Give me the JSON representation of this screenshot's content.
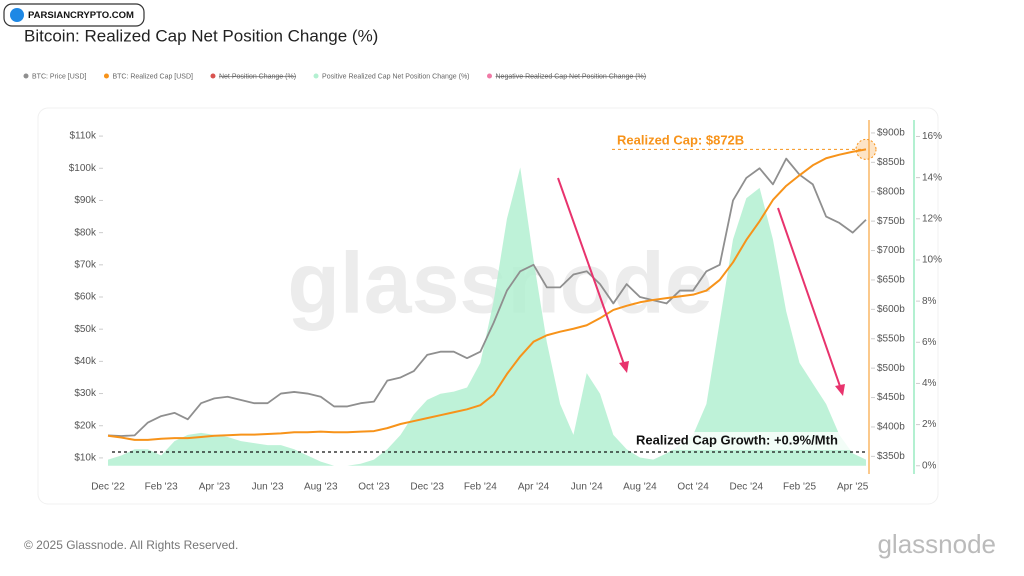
{
  "logo": "PARSIANCRYPTO.COM",
  "watermark": "glassnode",
  "footer_logo": "glassnode",
  "copyright": "© 2025 Glassnode. All Rights Reserved.",
  "chart_data": {
    "type": "line",
    "title": "Bitcoin: Realized Cap Net Position Change (%)",
    "categories": [
      "Dec '22",
      null,
      null,
      null,
      "Feb '23",
      null,
      null,
      null,
      "Apr '23",
      null,
      null,
      null,
      "Jun '23",
      null,
      null,
      null,
      "Aug '23",
      null,
      null,
      null,
      "Oct '23",
      null,
      null,
      null,
      "Dec '23",
      null,
      null,
      null,
      "Feb '24",
      null,
      null,
      null,
      "Apr '24",
      null,
      null,
      null,
      "Jun '24",
      null,
      null,
      null,
      "Aug '24",
      null,
      null,
      null,
      "Oct '24",
      null,
      null,
      null,
      "Dec '24",
      null,
      null,
      null,
      "Feb '25",
      null,
      null,
      null,
      "Apr '25",
      null
    ],
    "series": [
      {
        "name": "BTC: Price [USD]",
        "color": "#8f8f8f",
        "axis": "y",
        "values": [
          17000,
          16800,
          17000,
          21000,
          23000,
          24000,
          22000,
          27000,
          28500,
          29000,
          28000,
          27000,
          27000,
          30000,
          30500,
          30000,
          29000,
          26000,
          26000,
          27000,
          27500,
          34000,
          35000,
          37000,
          42000,
          43000,
          43000,
          41000,
          43000,
          52000,
          62000,
          68000,
          70000,
          63000,
          63000,
          67000,
          68000,
          64000,
          58000,
          64000,
          60000,
          59000,
          58000,
          62000,
          62000,
          68000,
          70000,
          90000,
          97000,
          100000,
          95000,
          103000,
          98000,
          95000,
          85000,
          83000,
          80000,
          84000
        ]
      },
      {
        "name": "BTC: Realized Cap [USD]",
        "color": "#f7931a",
        "axis": "y2",
        "values": [
          385,
          382,
          378,
          378,
          380,
          381,
          381,
          383,
          385,
          386,
          387,
          387,
          388,
          389,
          391,
          391,
          392,
          391,
          391,
          392,
          393,
          398,
          405,
          410,
          415,
          420,
          425,
          430,
          437,
          455,
          490,
          520,
          545,
          556,
          562,
          567,
          573,
          585,
          599,
          606,
          612,
          616,
          619,
          622,
          625,
          632,
          650,
          680,
          718,
          750,
          786,
          810,
          828,
          845,
          857,
          863,
          868,
          872
        ]
      },
      {
        "name": "Positive Realized Cap Net Position Change (%)",
        "color": "#b3f0d1",
        "axis": "y3",
        "area": true,
        "values": [
          0.3,
          0.5,
          0.8,
          0.8,
          0.5,
          1.2,
          1.5,
          1.6,
          1.5,
          1.4,
          1.2,
          1.1,
          1.0,
          1.0,
          0.8,
          0.5,
          0.2,
          0,
          0,
          0.1,
          0.3,
          0.8,
          1.5,
          2.5,
          3.2,
          3.5,
          3.6,
          3.8,
          5,
          8,
          12,
          14.5,
          10,
          6,
          3,
          1.5,
          4.5,
          3.5,
          1.5,
          0.8,
          0.4,
          0.3,
          0.6,
          1,
          1.5,
          3,
          7,
          11,
          13,
          13.5,
          11,
          7.5,
          5,
          4,
          3,
          1.5,
          0.6,
          0.3
        ]
      }
    ],
    "hidden_series": [
      {
        "name": "Net Position Change (%)",
        "color": "#d9534f"
      },
      {
        "name": "Negative Realized Cap Net Position Change (%)",
        "color": "#f07aa6"
      }
    ],
    "ylim": [
      5000,
      115000
    ],
    "yticks": [
      {
        "value": 10000,
        "label": "$10k"
      },
      {
        "value": 20000,
        "label": "$20k"
      },
      {
        "value": 30000,
        "label": "$30k"
      },
      {
        "value": 40000,
        "label": "$40k"
      },
      {
        "value": 50000,
        "label": "$50k"
      },
      {
        "value": 60000,
        "label": "$60k"
      },
      {
        "value": 70000,
        "label": "$70k"
      },
      {
        "value": 80000,
        "label": "$80k"
      },
      {
        "value": 90000,
        "label": "$90k"
      },
      {
        "value": 100000,
        "label": "$100k"
      },
      {
        "value": 110000,
        "label": "$110k"
      }
    ],
    "y2lim": [
      320,
      922
    ],
    "y2ticks": [
      {
        "value": 350,
        "label": "$350b"
      },
      {
        "value": 400,
        "label": "$400b"
      },
      {
        "value": 450,
        "label": "$450b"
      },
      {
        "value": 500,
        "label": "$500b"
      },
      {
        "value": 550,
        "label": "$550b"
      },
      {
        "value": 600,
        "label": "$600b"
      },
      {
        "value": 650,
        "label": "$650b"
      },
      {
        "value": 700,
        "label": "$700b"
      },
      {
        "value": 750,
        "label": "$750b"
      },
      {
        "value": 800,
        "label": "$800b"
      },
      {
        "value": 850,
        "label": "$850b"
      },
      {
        "value": 900,
        "label": "$900b"
      }
    ],
    "y3lim": [
      -0.4,
      16.8
    ],
    "y3ticks": [
      {
        "value": 0,
        "label": "0%"
      },
      {
        "value": 2,
        "label": "2%"
      },
      {
        "value": 4,
        "label": "4%"
      },
      {
        "value": 6,
        "label": "6%"
      },
      {
        "value": 8,
        "label": "8%"
      },
      {
        "value": 10,
        "label": "10%"
      },
      {
        "value": 12,
        "label": "12%"
      },
      {
        "value": 14,
        "label": "14%"
      },
      {
        "value": 16,
        "label": "16%"
      }
    ],
    "annotations": [
      "Realized Cap: $872B",
      "Realized Cap Growth: +0.9%/Mth"
    ]
  }
}
